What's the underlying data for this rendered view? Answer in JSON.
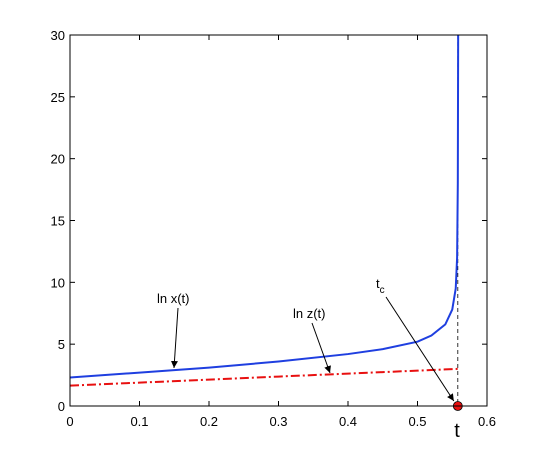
{
  "chart_data": {
    "type": "line",
    "x": [
      0,
      0.1,
      0.2,
      0.3,
      0.4,
      0.45,
      0.5,
      0.52,
      0.54,
      0.55,
      0.555,
      0.557,
      0.558,
      0.5585
    ],
    "series": [
      {
        "name": "ln x(t)",
        "color": "#1f3fe0",
        "style": "solid",
        "values": [
          2.3,
          2.7,
          3.1,
          3.6,
          4.2,
          4.6,
          5.2,
          5.7,
          6.6,
          7.8,
          9.5,
          12,
          18,
          30
        ]
      },
      {
        "name": "ln z(t)",
        "color": "#e81010",
        "style": "dashdot",
        "values": [
          1.65,
          1.89,
          2.13,
          2.38,
          2.62,
          2.74,
          2.86,
          2.91,
          2.96,
          2.98,
          2.99,
          3.0,
          3.0,
          null
        ]
      }
    ],
    "tc": 0.558,
    "tc_label": {
      "base": "t",
      "sub": "c"
    },
    "xlabel": "t",
    "xlim": [
      0,
      0.6
    ],
    "ylim": [
      0,
      30
    ],
    "xticks": [
      0,
      0.1,
      0.2,
      0.3,
      0.4,
      0.5,
      0.6
    ],
    "yticks": [
      0,
      5,
      10,
      15,
      20,
      25,
      30
    ]
  }
}
